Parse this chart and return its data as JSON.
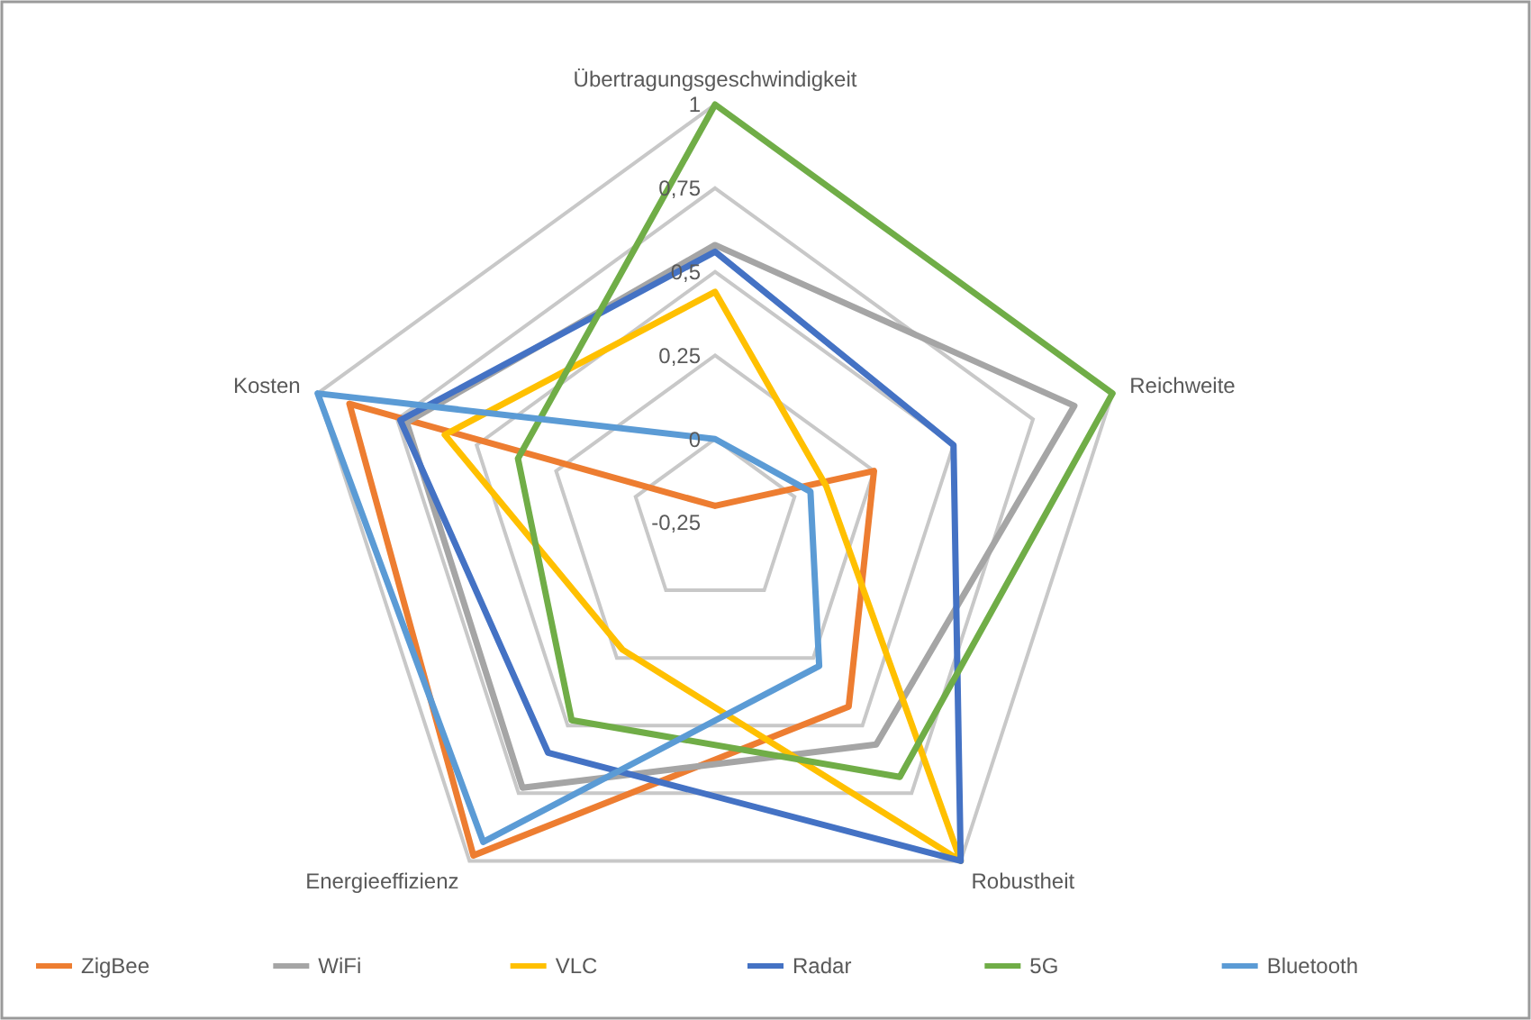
{
  "chart_data": {
    "type": "radar",
    "categories": [
      "Übertragungsgeschwindigkeit",
      "Reichweite",
      "Robustheit",
      "Energieeffizienz",
      "Kosten"
    ],
    "ylim": [
      -0.25,
      1
    ],
    "yticks": [
      {
        "value": -0.25,
        "label": "-0,25"
      },
      0,
      {
        "value": 0.25,
        "label": "0,25"
      },
      {
        "value": 0.5,
        "label": "0,5"
      },
      {
        "value": 0.75,
        "label": "0,75"
      },
      1
    ],
    "grid": true,
    "legend": "bottom",
    "marker": "none",
    "series": [
      {
        "name": "ZigBee",
        "color": "#ed7d31",
        "values": [
          -0.2,
          0.25,
          0.43,
          0.98,
          0.9
        ]
      },
      {
        "name": "WiFi",
        "color": "#a5a5a5",
        "values": [
          0.58,
          0.88,
          0.57,
          0.73,
          0.72
        ]
      },
      {
        "name": "VLC",
        "color": "#ffc000",
        "values": [
          0.44,
          0.1,
          1,
          0.22,
          0.6
        ]
      },
      {
        "name": "Radar",
        "color": "#4472c4",
        "values": [
          0.56,
          0.5,
          1,
          0.6,
          0.74
        ]
      },
      {
        "name": "5G",
        "color": "#70ad47",
        "values": [
          1,
          1,
          0.69,
          0.48,
          0.37
        ]
      },
      {
        "name": "Bluetooth",
        "color": "#5b9bd5",
        "values": [
          0,
          0.05,
          0.28,
          0.93,
          1
        ]
      }
    ]
  }
}
